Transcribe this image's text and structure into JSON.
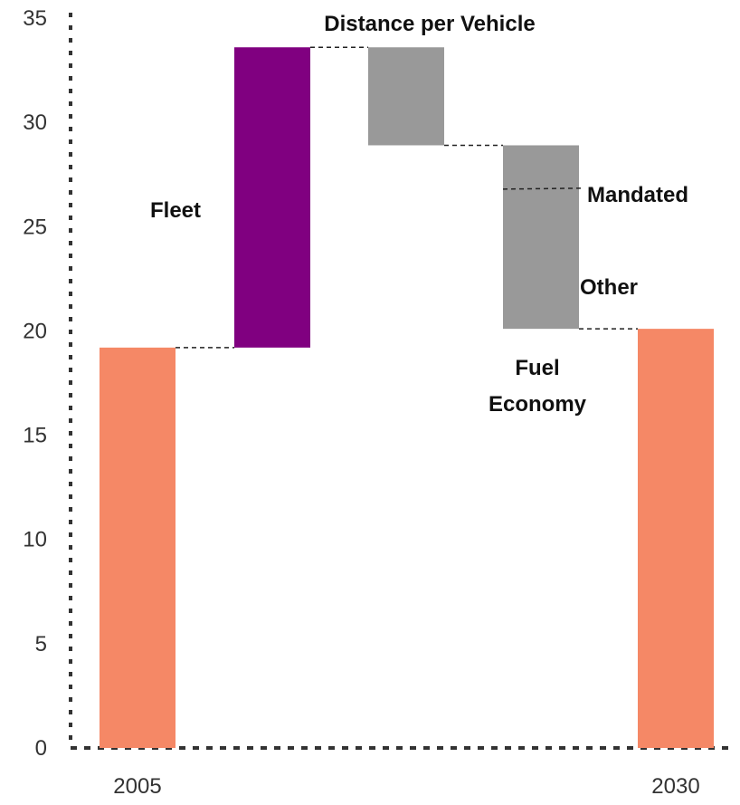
{
  "chart_data": {
    "type": "bar",
    "subtype": "waterfall",
    "title": "",
    "xlabel": "",
    "ylabel": "",
    "ylim": [
      0,
      35
    ],
    "yticks": [
      0,
      5,
      10,
      15,
      20,
      25,
      30,
      35
    ],
    "grid": false,
    "legend": "none",
    "categories": [
      "2005",
      "",
      "",
      "",
      "2030"
    ],
    "bars": [
      {
        "category": "2005",
        "base": 0,
        "top": 19.2,
        "color": "#F58866",
        "kind": "total"
      },
      {
        "category": "",
        "base": 19.2,
        "top": 33.6,
        "color": "#800080",
        "kind": "increase",
        "label": "Fleet"
      },
      {
        "category": "",
        "base": 28.9,
        "top": 33.6,
        "color": "#999999",
        "kind": "decrease",
        "label": "Distance per Vehicle"
      },
      {
        "category": "",
        "base": 20.1,
        "top": 28.9,
        "color": "#999999",
        "kind": "decrease",
        "label": "Fuel Economy"
      },
      {
        "category": "2030",
        "base": 0,
        "top": 20.1,
        "color": "#F58866",
        "kind": "total"
      }
    ],
    "connectors": [
      {
        "from": 0,
        "to": 1,
        "y": 19.2
      },
      {
        "from": 1,
        "to": 2,
        "y": 33.6
      },
      {
        "from": 2,
        "to": 3,
        "y": 28.9
      },
      {
        "from": 3,
        "to": 4,
        "y": 20.1
      }
    ],
    "split_marker": {
      "bar": 3,
      "y": 26.8
    },
    "annotations": {
      "fleet": "Fleet",
      "distance": "Distance per Vehicle",
      "mandated": "Mandated",
      "other": "Other",
      "fuel_line1": "Fuel",
      "fuel_line2": "Economy"
    }
  }
}
